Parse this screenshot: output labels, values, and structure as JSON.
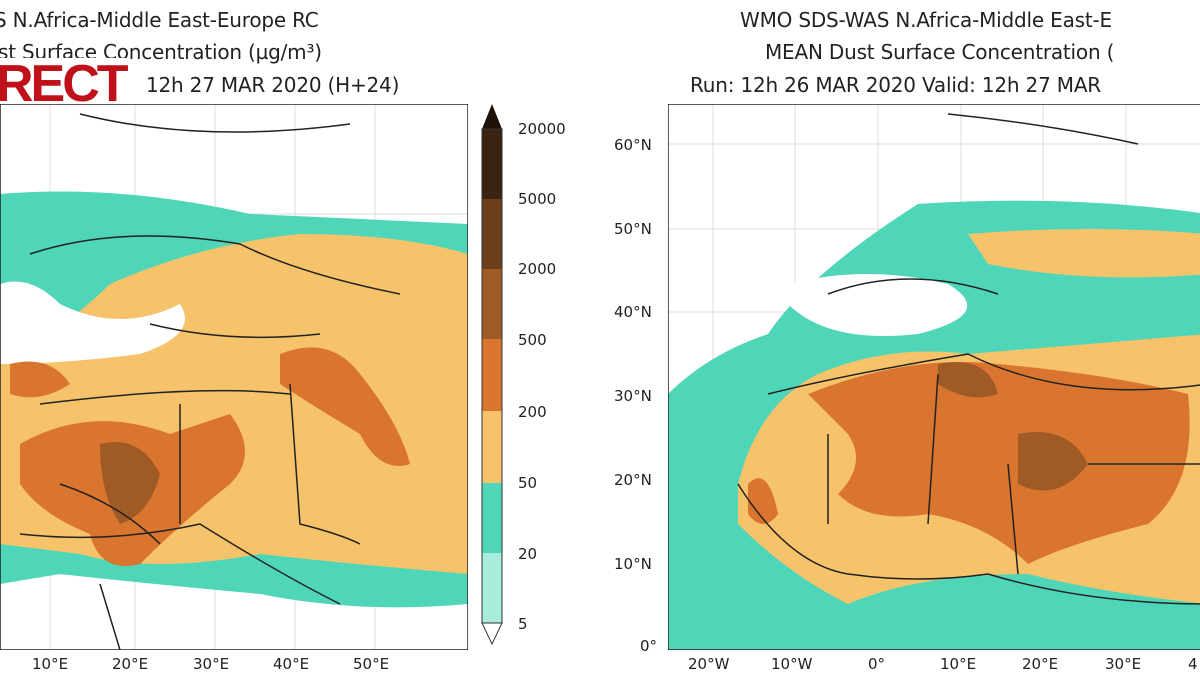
{
  "left_panel": {
    "title_line1": "S   N.Africa-Middle East-Europe RC",
    "title_line2": "st Surface Concentration (µg/m³)",
    "title_line3": "12h 27 MAR 2020 (H+24)",
    "overlay_text": "RECT",
    "lon_ticks": [
      "10°E",
      "20°E",
      "30°E",
      "40°E",
      "50°E"
    ]
  },
  "colorbar": {
    "levels": [
      "20000",
      "5000",
      "2000",
      "500",
      "200",
      "50",
      "20",
      "5"
    ],
    "colors": [
      "#3b2312",
      "#6b3f1c",
      "#a05a26",
      "#d9752f",
      "#f6c36a",
      "#4fd6b9",
      "#a8ecdc",
      "#ffffff"
    ]
  },
  "right_panel": {
    "title_line1": "WMO SDS-WAS   N.Africa-Middle East-E",
    "title_line2": "MEAN    Dust Surface Concentration (",
    "title_line3": "Run: 12h 26 MAR 2020   Valid: 12h 27 MAR",
    "lat_ticks": [
      "60°N",
      "50°N",
      "40°N",
      "30°N",
      "20°N",
      "10°N",
      "0°"
    ],
    "lon_ticks": [
      "20°W",
      "10°W",
      "0°",
      "10°E",
      "20°E",
      "30°E",
      "4"
    ]
  }
}
